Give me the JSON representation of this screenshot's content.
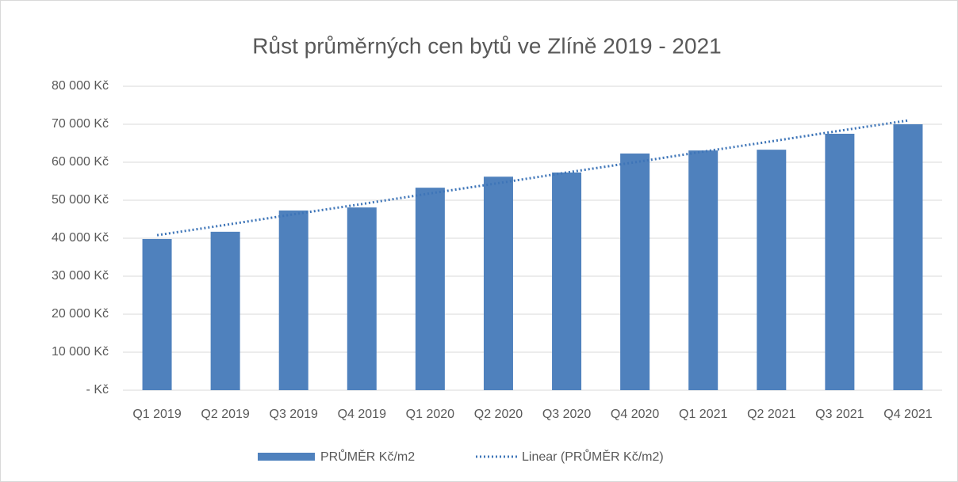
{
  "chart_data": {
    "type": "bar",
    "title": "Růst průměrných cen bytů ve Zlíně 2019 - 2021",
    "categories": [
      "Q1 2019",
      "Q2 2019",
      "Q3 2019",
      "Q4 2019",
      "Q1 2020",
      "Q2 2020",
      "Q3 2020",
      "Q4 2020",
      "Q1 2021",
      "Q2 2021",
      "Q3 2021",
      "Q4 2021"
    ],
    "series": [
      {
        "name": "PRŮMĚR Kč/m2",
        "type": "bar",
        "color": "#4f81bd",
        "values": [
          39800,
          41700,
          47300,
          48100,
          53300,
          56200,
          57300,
          62300,
          63100,
          63300,
          67500,
          70000
        ]
      },
      {
        "name": "Linear (PRŮMĚR Kč/m2)",
        "type": "line",
        "color": "#3e75b8",
        "values": [
          40800,
          43500,
          46300,
          49000,
          51800,
          54500,
          57300,
          60000,
          62800,
          65500,
          68300,
          71000
        ]
      }
    ],
    "ylim": [
      0,
      80000
    ],
    "yticks": [
      {
        "value": 0,
        "label": "- Kč"
      },
      {
        "value": 10000,
        "label": "10 000 Kč"
      },
      {
        "value": 20000,
        "label": "20 000 Kč"
      },
      {
        "value": 30000,
        "label": "30 000 Kč"
      },
      {
        "value": 40000,
        "label": "40 000 Kč"
      },
      {
        "value": 50000,
        "label": "50 000 Kč"
      },
      {
        "value": 60000,
        "label": "60 000 Kč"
      },
      {
        "value": 70000,
        "label": "70 000 Kč"
      },
      {
        "value": 80000,
        "label": "80 000 Kč"
      }
    ],
    "grid": true,
    "legend": "bottom"
  }
}
